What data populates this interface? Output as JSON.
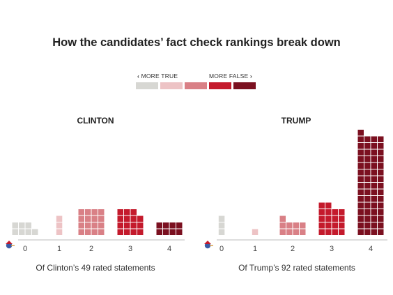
{
  "title": "How the candidates’ fact check rankings break down",
  "legend": {
    "more_true": "MORE TRUE",
    "more_false": "MORE FALSE",
    "colors": [
      "#d7d7d3",
      "#edc3c5",
      "#d98086",
      "#c41a2c",
      "#7b1020"
    ]
  },
  "chart_data": [
    {
      "type": "bar",
      "title": "CLINTON",
      "caption": "Of Clinton’s 49 rated statements",
      "categories": [
        "0",
        "1",
        "2",
        "3",
        "4"
      ],
      "values": [
        7,
        3,
        16,
        15,
        8
      ],
      "colors": [
        "#d7d7d3",
        "#edc3c5",
        "#d98086",
        "#c41a2c",
        "#7b1020"
      ]
    },
    {
      "type": "bar",
      "title": "TRUMP",
      "caption": "Of Trump’s 92 rated statements",
      "categories": [
        "0",
        "1",
        "2",
        "3",
        "4"
      ],
      "values": [
        3,
        1,
        9,
        18,
        61
      ],
      "colors": [
        "#d7d7d3",
        "#edc3c5",
        "#d98086",
        "#c41a2c",
        "#7b1020"
      ]
    }
  ]
}
